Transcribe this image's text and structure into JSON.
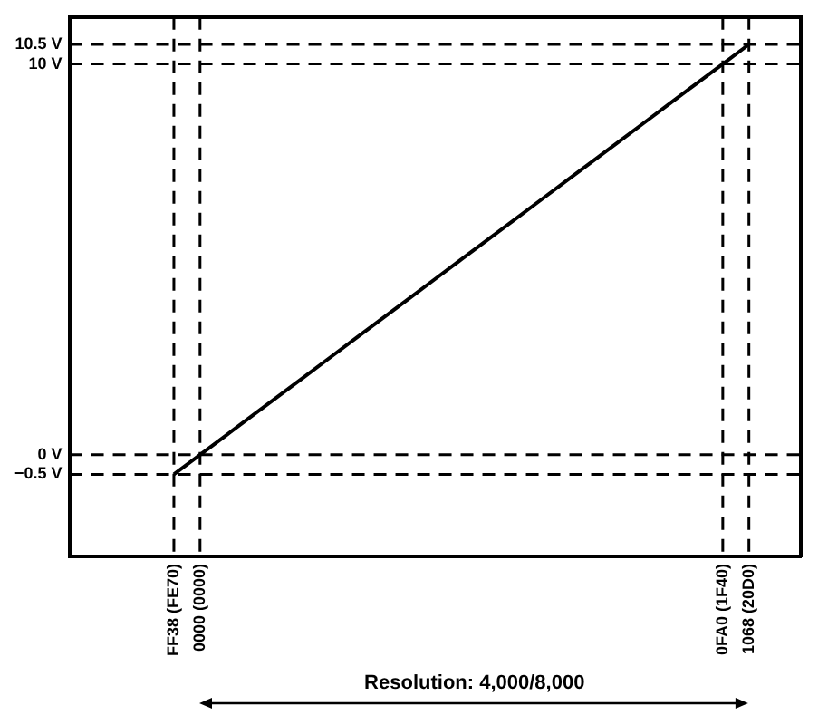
{
  "chart_data": {
    "type": "line",
    "categories": [
      null,
      null,
      null,
      null,
      "FF38 (FE70)",
      "0000 (0000)",
      null,
      null,
      null,
      null,
      null,
      null,
      null,
      null,
      null,
      null,
      null,
      null,
      null,
      null,
      null,
      null,
      null,
      null,
      null,
      "0FA0 (1F40)",
      "1068 (20D0)",
      null,
      null
    ],
    "series": [
      {
        "color": "#000000",
        "values": [
          null,
          null,
          null,
          null,
          -0.5,
          0,
          0.5,
          1,
          1.5,
          2,
          2.5,
          3,
          3.5,
          4,
          4.5,
          5,
          5.5,
          6,
          6.5,
          7,
          7.5,
          8,
          8.5,
          9,
          9.5,
          10,
          10.5,
          null,
          null
        ]
      }
    ],
    "marker": "none",
    "line_style": "solid",
    "grid": false,
    "legend": false,
    "ylim": [
      -2.6,
      11.2
    ],
    "yticks": [
      {
        "value": -0.5,
        "label": "−0.5 V"
      },
      {
        "value": 0,
        "label": "0 V"
      },
      {
        "value": 10,
        "label": "10 V"
      },
      {
        "value": 10.5,
        "label": "10.5 V"
      }
    ],
    "ref_lines": [
      {
        "axis": "y",
        "value": -0.5,
        "color": "#000000",
        "line_style": "dashed"
      },
      {
        "axis": "y",
        "value": 0,
        "color": "#000000",
        "line_style": "dashed"
      },
      {
        "axis": "y",
        "value": 10,
        "color": "#000000",
        "line_style": "dashed"
      },
      {
        "axis": "y",
        "value": 10.5,
        "color": "#000000",
        "line_style": "dashed"
      },
      {
        "axis": "x",
        "value": "FF38 (FE70)",
        "color": "#000000",
        "line_style": "dashed"
      },
      {
        "axis": "x",
        "value": "0000 (0000)",
        "color": "#000000",
        "line_style": "dashed"
      },
      {
        "axis": "x",
        "value": "0FA0 (1F40)",
        "color": "#000000",
        "line_style": "dashed"
      },
      {
        "axis": "x",
        "value": "1068 (20D0)",
        "color": "#000000",
        "line_style": "dashed"
      }
    ],
    "annotations": [
      "Resolution: 4,000/8,000"
    ]
  }
}
